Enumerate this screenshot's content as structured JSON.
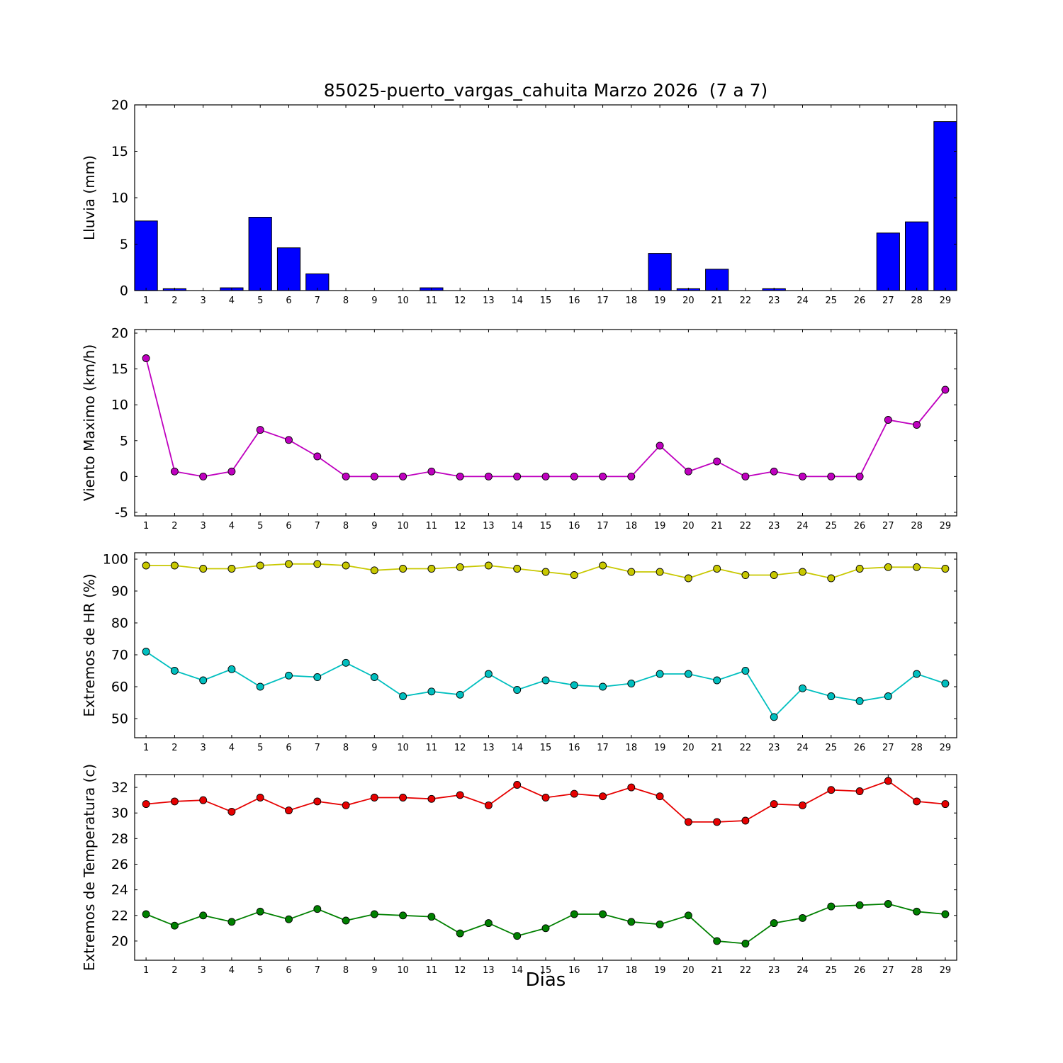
{
  "figure": {
    "title": "85025-puerto_vargas_cahuita Marzo 2026  (7 a 7)",
    "xlabel": "Dias",
    "background_color": "#ffffff"
  },
  "chart_data": [
    {
      "type": "bar",
      "name": "lluvia",
      "ylabel": "Lluvia (mm)",
      "color": "#0000ff",
      "bar_edge_color": "#000000",
      "x": [
        1,
        2,
        3,
        4,
        5,
        6,
        7,
        8,
        9,
        10,
        11,
        12,
        13,
        14,
        15,
        16,
        17,
        18,
        19,
        20,
        21,
        22,
        23,
        24,
        25,
        26,
        27,
        28,
        29
      ],
      "values": [
        7.5,
        0.2,
        0,
        0.3,
        7.9,
        4.6,
        1.8,
        0,
        0,
        0,
        0.3,
        0,
        0,
        0,
        0,
        0,
        0,
        0,
        4.0,
        0.2,
        2.3,
        0,
        0.2,
        0,
        0,
        0,
        6.2,
        7.4,
        18.2
      ],
      "xlim": [
        0.6,
        29.4
      ],
      "ylim": [
        0,
        20
      ],
      "yticks": [
        0,
        5,
        10,
        15,
        20
      ],
      "grid": false
    },
    {
      "type": "line",
      "name": "viento_maximo",
      "ylabel": "Viento Maximo (km/h)",
      "x": [
        1,
        2,
        3,
        4,
        5,
        6,
        7,
        8,
        9,
        10,
        11,
        12,
        13,
        14,
        15,
        16,
        17,
        18,
        19,
        20,
        21,
        22,
        23,
        24,
        25,
        26,
        27,
        28,
        29
      ],
      "series": [
        {
          "name": "viento_maximo",
          "color": "#bf00bf",
          "values": [
            16.5,
            0.7,
            0,
            0.7,
            6.5,
            5.1,
            2.8,
            0,
            0,
            0,
            0.7,
            0,
            0,
            0,
            0,
            0,
            0,
            0,
            4.3,
            0.7,
            2.1,
            0,
            0.7,
            0,
            0,
            0,
            7.9,
            7.2,
            12.1
          ]
        }
      ],
      "xlim": [
        0.6,
        29.4
      ],
      "ylim": [
        -5.5,
        20.5
      ],
      "yticks": [
        -5,
        0,
        5,
        10,
        15,
        20
      ],
      "grid": false
    },
    {
      "type": "line",
      "name": "extremos_hr",
      "ylabel": "Extremos de HR (%)",
      "x": [
        1,
        2,
        3,
        4,
        5,
        6,
        7,
        8,
        9,
        10,
        11,
        12,
        13,
        14,
        15,
        16,
        17,
        18,
        19,
        20,
        21,
        22,
        23,
        24,
        25,
        26,
        27,
        28,
        29
      ],
      "series": [
        {
          "name": "hr_maxima",
          "color": "#c8c800",
          "values": [
            98,
            98,
            97,
            97,
            98,
            98.5,
            98.5,
            98,
            96.5,
            97,
            97,
            97.5,
            98,
            97,
            96,
            95,
            98,
            96,
            96,
            94,
            97,
            95,
            95,
            96,
            94,
            97,
            97.5,
            97.5,
            97
          ]
        },
        {
          "name": "hr_minima",
          "color": "#00bfbf",
          "values": [
            71,
            65,
            62,
            65.5,
            60,
            63.5,
            63,
            67.5,
            63,
            57,
            58.5,
            57.5,
            64,
            59,
            62,
            60.5,
            60,
            61,
            64,
            64,
            62,
            65,
            50.5,
            59.5,
            57,
            55.5,
            57,
            64,
            61
          ]
        }
      ],
      "xlim": [
        0.6,
        29.4
      ],
      "ylim": [
        44,
        102
      ],
      "yticks": [
        50,
        60,
        70,
        80,
        90,
        100
      ],
      "grid": false
    },
    {
      "type": "line",
      "name": "extremos_temperatura",
      "ylabel": "Extremos de Temperatura (c)",
      "x": [
        1,
        2,
        3,
        4,
        5,
        6,
        7,
        8,
        9,
        10,
        11,
        12,
        13,
        14,
        15,
        16,
        17,
        18,
        19,
        20,
        21,
        22,
        23,
        24,
        25,
        26,
        27,
        28,
        29
      ],
      "series": [
        {
          "name": "temperatura_maxima",
          "color": "#e60000",
          "values": [
            30.7,
            30.9,
            31.0,
            30.1,
            31.2,
            30.2,
            30.9,
            30.6,
            31.2,
            31.2,
            31.1,
            31.4,
            30.6,
            32.2,
            31.2,
            31.5,
            31.3,
            32.0,
            31.3,
            29.3,
            29.3,
            29.4,
            30.7,
            30.6,
            31.8,
            31.7,
            32.5,
            30.9,
            30.7
          ]
        },
        {
          "name": "temperatura_minima",
          "color": "#008000",
          "values": [
            22.1,
            21.2,
            22.0,
            21.5,
            22.3,
            21.7,
            22.5,
            21.6,
            22.1,
            22.0,
            21.9,
            20.6,
            21.4,
            20.4,
            21.0,
            22.1,
            22.1,
            21.5,
            21.3,
            22.0,
            20.0,
            19.8,
            21.4,
            21.8,
            22.7,
            22.8,
            22.9,
            22.3,
            22.1
          ]
        }
      ],
      "xlim": [
        0.6,
        29.4
      ],
      "ylim": [
        18.5,
        33
      ],
      "yticks": [
        20,
        22,
        24,
        26,
        28,
        30,
        32
      ],
      "grid": false
    }
  ]
}
